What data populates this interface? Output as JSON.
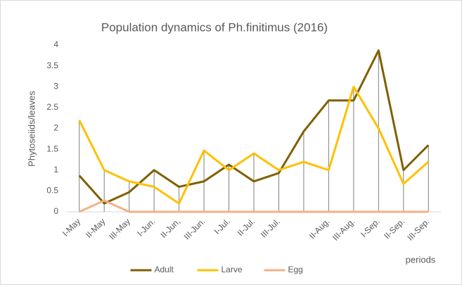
{
  "chart_data": {
    "type": "line",
    "title": "Population dynamics of  Ph.finitimus (2016)",
    "y_label": "Phytoseiids/leaves",
    "x_label": "periods",
    "categories": [
      "I-May",
      "II-May",
      "III-May",
      "I-Jun.",
      "II-Jun,",
      "III-Jun.",
      "I-Jul.",
      "II-Jul.",
      "III-Jul.",
      null,
      "II-Aug.",
      "III-Aug.",
      "I-Sep.",
      "II-Sep.",
      "III-Sep."
    ],
    "series": [
      {
        "name": "Adult",
        "color": "#7f6000",
        "values": [
          0.87,
          0.2,
          0.47,
          1.0,
          0.6,
          0.73,
          1.13,
          0.73,
          0.93,
          1.93,
          2.67,
          2.67,
          3.87,
          1.0,
          1.6
        ]
      },
      {
        "name": "Larve",
        "color": "#ffc000",
        "values": [
          2.2,
          1.0,
          0.73,
          0.6,
          0.2,
          1.47,
          1.0,
          1.4,
          1.0,
          1.2,
          1.0,
          3.0,
          2.0,
          0.67,
          1.2
        ]
      },
      {
        "name": "Egg",
        "color": "#f4b183",
        "values": [
          0,
          0.27,
          0,
          0,
          0,
          0,
          0,
          0,
          0,
          0,
          0,
          0,
          0,
          0,
          0
        ]
      }
    ],
    "ylim": [
      0,
      4
    ],
    "yticks": [
      0,
      0.5,
      1,
      1.5,
      2,
      2.5,
      3,
      3.5,
      4
    ],
    "grid": false,
    "drop_lines": true,
    "legend": "bottom"
  }
}
